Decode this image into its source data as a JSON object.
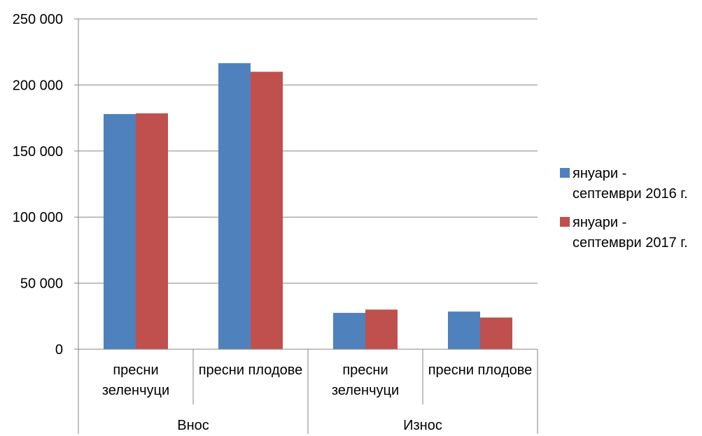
{
  "chart_data": {
    "type": "bar",
    "title": "",
    "xlabel": "",
    "ylabel": "",
    "ylim": [
      0,
      250000
    ],
    "yticks": [
      "0",
      "50 000",
      "100 000",
      "150 000",
      "200 000",
      "250 000"
    ],
    "yticks_values": [
      0,
      50000,
      100000,
      150000,
      200000,
      250000
    ],
    "grid": true,
    "legend_position": "right",
    "groups": [
      {
        "label": "Внос",
        "categories": [
          {
            "lines": [
              "пресни",
              "зеленчуци"
            ]
          },
          {
            "lines": [
              "пресни плодове"
            ]
          }
        ]
      },
      {
        "label": "Износ",
        "categories": [
          {
            "lines": [
              "пресни",
              "зеленчуци"
            ]
          },
          {
            "lines": [
              "пресни плодове"
            ]
          }
        ]
      }
    ],
    "categories": [
      "пресни зеленчуци",
      "пресни плодове",
      "пресни зеленчуци",
      "пресни плодове"
    ],
    "series": [
      {
        "name": "януари - септември 2016 г.",
        "legend_lines": [
          "януари -",
          "септември 2016 г."
        ],
        "color": "#4F81BD",
        "values": [
          178000,
          216500,
          27500,
          28500
        ]
      },
      {
        "name": "януари - септември 2017 г.",
        "legend_lines": [
          "януари -",
          "септември 2017 г."
        ],
        "color": "#C0504D",
        "values": [
          178500,
          210000,
          30000,
          24000
        ]
      }
    ]
  }
}
